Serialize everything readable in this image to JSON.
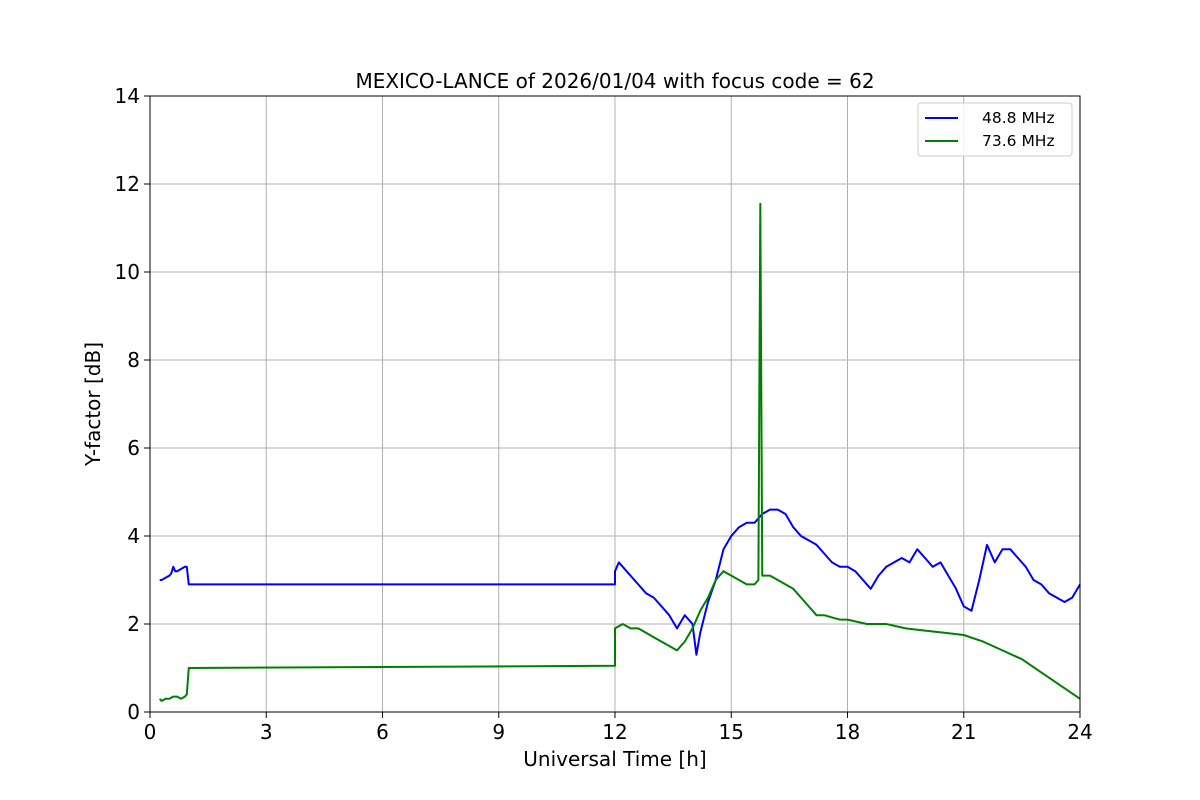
{
  "chart_data": {
    "type": "line",
    "title": "MEXICO-LANCE of 2026/01/04 with focus code = 62",
    "xlabel": "Universal Time [h]",
    "ylabel": "Y-factor [dB]",
    "xlim": [
      0,
      24
    ],
    "ylim": [
      0,
      14
    ],
    "xticks": [
      0,
      3,
      6,
      9,
      12,
      15,
      18,
      21,
      24
    ],
    "yticks": [
      0,
      2,
      4,
      6,
      8,
      10,
      12,
      14
    ],
    "xtick_labels": [
      "0",
      "3",
      "6",
      "9",
      "12",
      "15",
      "18",
      "21",
      "24"
    ],
    "ytick_labels": [
      "0",
      "2",
      "4",
      "6",
      "8",
      "10",
      "12",
      "14"
    ],
    "grid": true,
    "legend_position": "top-right",
    "series": [
      {
        "name": "48.8 MHz",
        "color": "#0000ff",
        "x": [
          0.25,
          0.3,
          0.4,
          0.5,
          0.55,
          0.6,
          0.65,
          0.7,
          0.8,
          0.9,
          0.95,
          1.0,
          12.0,
          12.0,
          12.1,
          12.2,
          12.4,
          12.6,
          12.8,
          13.0,
          13.2,
          13.4,
          13.6,
          13.8,
          14.0,
          14.1,
          14.2,
          14.4,
          14.6,
          14.8,
          15.0,
          15.2,
          15.4,
          15.6,
          15.8,
          16.0,
          16.2,
          16.4,
          16.6,
          16.8,
          17.0,
          17.2,
          17.4,
          17.6,
          17.8,
          18.0,
          18.2,
          18.4,
          18.6,
          18.8,
          19.0,
          19.2,
          19.4,
          19.6,
          19.8,
          20.0,
          20.2,
          20.4,
          20.6,
          20.8,
          21.0,
          21.2,
          21.4,
          21.6,
          21.8,
          22.0,
          22.2,
          22.4,
          22.6,
          22.8,
          23.0,
          23.2,
          23.4,
          23.6,
          23.8,
          24.0
        ],
        "y": [
          3.0,
          3.0,
          3.05,
          3.1,
          3.15,
          3.3,
          3.2,
          3.2,
          3.25,
          3.3,
          3.3,
          2.9,
          2.9,
          3.2,
          3.4,
          3.3,
          3.1,
          2.9,
          2.7,
          2.6,
          2.4,
          2.2,
          1.9,
          2.2,
          2.0,
          1.3,
          1.8,
          2.5,
          3.0,
          3.7,
          4.0,
          4.2,
          4.3,
          4.3,
          4.5,
          4.6,
          4.6,
          4.5,
          4.2,
          4.0,
          3.9,
          3.8,
          3.6,
          3.4,
          3.3,
          3.3,
          3.2,
          3.0,
          2.8,
          3.1,
          3.3,
          3.4,
          3.5,
          3.4,
          3.7,
          3.5,
          3.3,
          3.4,
          3.1,
          2.8,
          2.4,
          2.3,
          3.0,
          3.8,
          3.4,
          3.7,
          3.7,
          3.5,
          3.3,
          3.0,
          2.9,
          2.7,
          2.6,
          2.5,
          2.6,
          2.9
        ]
      },
      {
        "name": "73.6 MHz",
        "color": "#008000",
        "x": [
          0.25,
          0.3,
          0.4,
          0.5,
          0.6,
          0.7,
          0.8,
          0.9,
          0.95,
          1.0,
          12.0,
          12.0,
          12.2,
          12.4,
          12.6,
          12.8,
          13.0,
          13.2,
          13.4,
          13.6,
          13.8,
          14.0,
          14.2,
          14.4,
          14.6,
          14.8,
          15.0,
          15.2,
          15.4,
          15.6,
          15.7,
          15.75,
          15.8,
          16.0,
          16.2,
          16.4,
          16.6,
          16.8,
          17.0,
          17.2,
          17.4,
          17.6,
          17.8,
          18.0,
          18.5,
          19.0,
          19.5,
          20.0,
          20.5,
          21.0,
          21.5,
          22.0,
          22.5,
          23.0,
          23.5,
          24.0
        ],
        "y": [
          0.3,
          0.25,
          0.3,
          0.3,
          0.35,
          0.35,
          0.3,
          0.35,
          0.4,
          1.0,
          1.05,
          1.9,
          2.0,
          1.9,
          1.9,
          1.8,
          1.7,
          1.6,
          1.5,
          1.4,
          1.6,
          1.9,
          2.3,
          2.6,
          3.0,
          3.2,
          3.1,
          3.0,
          2.9,
          2.9,
          3.0,
          11.55,
          3.1,
          3.1,
          3.0,
          2.9,
          2.8,
          2.6,
          2.4,
          2.2,
          2.2,
          2.15,
          2.1,
          2.1,
          2.0,
          2.0,
          1.9,
          1.85,
          1.8,
          1.75,
          1.6,
          1.4,
          1.2,
          0.9,
          0.6,
          0.3
        ]
      }
    ]
  }
}
